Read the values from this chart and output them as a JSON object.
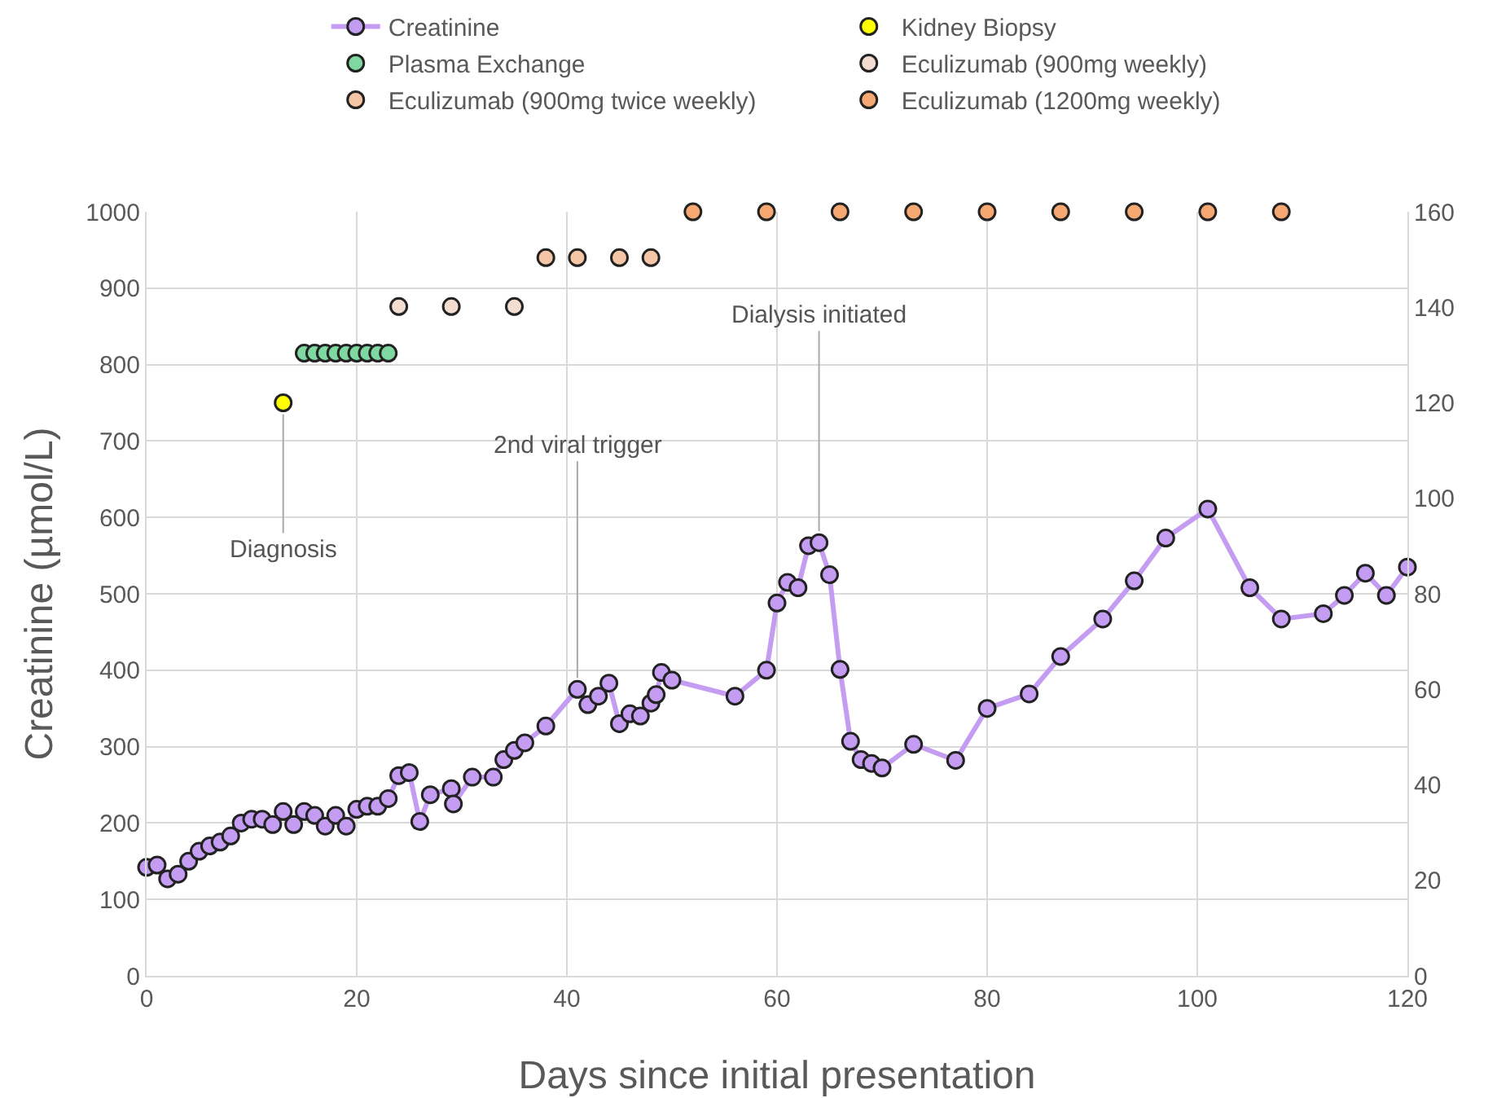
{
  "chart_data": {
    "type": "line",
    "xlabel": "Days since initial presentation",
    "ylabel": "Creatinine (µmol/L)",
    "xlim": [
      0,
      120
    ],
    "xticks": [
      0,
      20,
      40,
      60,
      80,
      100,
      120
    ],
    "ylim": [
      0,
      1000
    ],
    "yticks": [
      0,
      100,
      200,
      300,
      400,
      500,
      600,
      700,
      800,
      900,
      1000
    ],
    "y2lim": [
      0,
      160
    ],
    "y2ticks": [
      0,
      20,
      40,
      60,
      80,
      100,
      120,
      140,
      160
    ],
    "grid": true,
    "legend": "top",
    "marker": "circle",
    "line_style": "solid",
    "series": [
      {
        "name": "Creatinine",
        "color": "#c49cf2",
        "x": [
          0,
          1,
          2,
          3,
          4,
          5,
          6,
          7,
          8,
          9,
          10,
          11,
          12,
          13,
          14,
          15,
          16,
          17,
          18,
          19,
          20,
          21,
          22,
          23,
          24,
          25,
          26,
          27,
          29,
          29.2,
          31,
          33,
          34,
          35,
          36,
          38,
          41,
          42,
          43,
          44,
          45,
          46,
          47,
          48,
          48.5,
          49,
          50,
          56,
          59,
          60,
          61,
          62,
          63,
          64,
          65,
          66,
          67,
          68,
          69,
          70,
          73,
          77,
          80,
          84,
          87,
          91,
          94,
          97,
          101,
          105,
          108,
          112,
          114,
          116,
          118,
          120
        ],
        "values": [
          142,
          145,
          127,
          133,
          150,
          163,
          170,
          175,
          183,
          200,
          205,
          205,
          198,
          215,
          198,
          215,
          210,
          196,
          210,
          196,
          218,
          222,
          222,
          232,
          262,
          266,
          202,
          237,
          245,
          225,
          260,
          260,
          283,
          295,
          305,
          327,
          375,
          355,
          366,
          383,
          330,
          343,
          340,
          357,
          368,
          397,
          387,
          366,
          400,
          488,
          515,
          508,
          563,
          567,
          525,
          401,
          307,
          283,
          278,
          272,
          303,
          282,
          350,
          369,
          418,
          467,
          517,
          573,
          611,
          508,
          467,
          474,
          498,
          527,
          498,
          535
        ]
      },
      {
        "name": "Kidney Biopsy",
        "type": "scatter",
        "color": "#ffff00",
        "x": [
          13
        ],
        "values": [
          750
        ]
      },
      {
        "name": "Plasma Exchange",
        "type": "scatter",
        "color": "#7fd8a0",
        "x": [
          15,
          16,
          17,
          18,
          19,
          20,
          21,
          22,
          23
        ],
        "values": [
          815,
          815,
          815,
          815,
          815,
          815,
          815,
          815,
          815
        ]
      },
      {
        "name": "Eculizumab (900mg weekly)",
        "type": "scatter",
        "color": "#f2ddd0",
        "x": [
          24,
          29,
          35
        ],
        "values": [
          876,
          876,
          876
        ]
      },
      {
        "name": "Eculizumab (900mg twice weekly)",
        "type": "scatter",
        "color": "#f5c6a6",
        "x": [
          38,
          41,
          45,
          48
        ],
        "values": [
          940,
          940,
          940,
          940
        ]
      },
      {
        "name": "Eculizumab (1200mg weekly)",
        "type": "scatter",
        "color": "#f5a872",
        "x": [
          52,
          59,
          66,
          73,
          80,
          87,
          94,
          101,
          108
        ],
        "values": [
          1000,
          1000,
          1000,
          1000,
          1000,
          1000,
          1000,
          1000,
          1000
        ]
      }
    ],
    "annotations": [
      {
        "text": "Diagnosis",
        "x": 13,
        "y": 750
      },
      {
        "text": "2nd viral trigger",
        "x": 41,
        "y": 375
      },
      {
        "text": "Dialysis initiated",
        "x": 64,
        "y": 567
      }
    ]
  }
}
